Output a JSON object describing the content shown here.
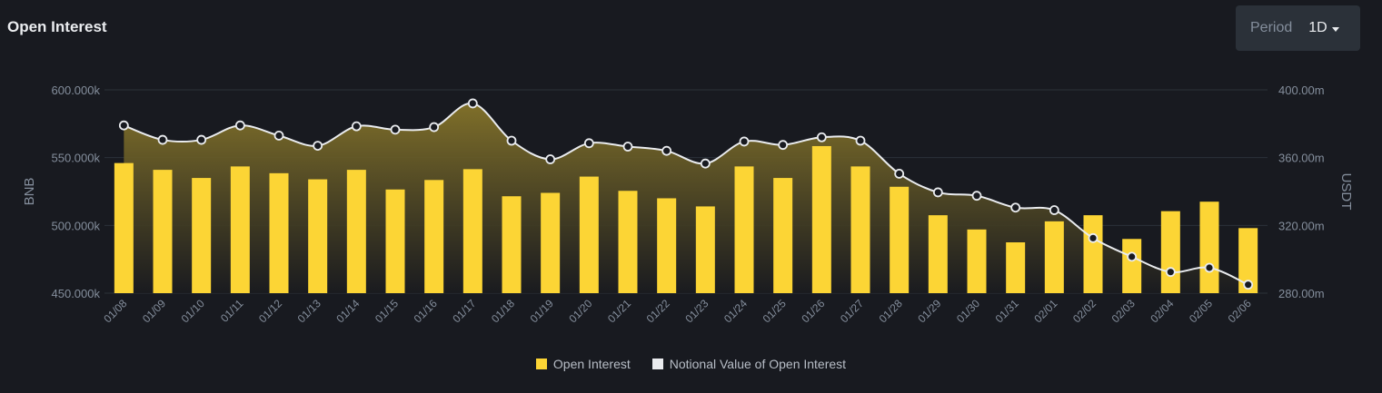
{
  "header": {
    "title": "Open Interest",
    "period_label": "Period",
    "period_value": "1D"
  },
  "colors": {
    "background": "#181a20",
    "bar": "#fcd535",
    "line": "#eaecef",
    "area_top": "#85742a",
    "grid": "#2b3139",
    "text_muted": "#848e9c"
  },
  "chart_data": {
    "type": "bar",
    "categories": [
      "01/08",
      "01/09",
      "01/10",
      "01/11",
      "01/12",
      "01/13",
      "01/14",
      "01/15",
      "01/16",
      "01/17",
      "01/18",
      "01/19",
      "01/20",
      "01/21",
      "01/22",
      "01/23",
      "01/24",
      "01/25",
      "01/26",
      "01/27",
      "01/28",
      "01/29",
      "01/30",
      "01/31",
      "02/01",
      "02/02",
      "02/03",
      "02/04",
      "02/05",
      "02/06"
    ],
    "series": [
      {
        "name": "Open Interest",
        "type": "bar",
        "axis": "left",
        "values": [
          546000,
          541000,
          535000,
          543500,
          538500,
          534000,
          541000,
          526500,
          533500,
          541500,
          521500,
          524000,
          536000,
          525500,
          520000,
          514000,
          543500,
          535000,
          558500,
          543500,
          528500,
          507500,
          497000,
          487500,
          503000,
          507500,
          490000,
          510500,
          517500,
          498000
        ]
      },
      {
        "name": "Notional Value of Open Interest",
        "type": "line",
        "axis": "right",
        "values": [
          379000,
          370500,
          370500,
          379000,
          373000,
          367000,
          378500,
          376500,
          378000,
          392000,
          370000,
          359000,
          368500,
          366500,
          364000,
          356500,
          369500,
          367500,
          372000,
          370000,
          350500,
          339500,
          337500,
          330500,
          329000,
          312500,
          301500,
          292500,
          295000,
          285000
        ]
      }
    ],
    "y_left": {
      "label": "BNB",
      "range": [
        450000,
        600000
      ],
      "ticks": [
        "450.000k",
        "500.000k",
        "550.000k",
        "600.000k"
      ]
    },
    "y_right": {
      "label": "USDT",
      "range": [
        280,
        400
      ],
      "ticks": [
        "280.00m",
        "320.00m",
        "360.00m",
        "400.00m"
      ]
    },
    "grid": true,
    "legend_position": "bottom"
  }
}
